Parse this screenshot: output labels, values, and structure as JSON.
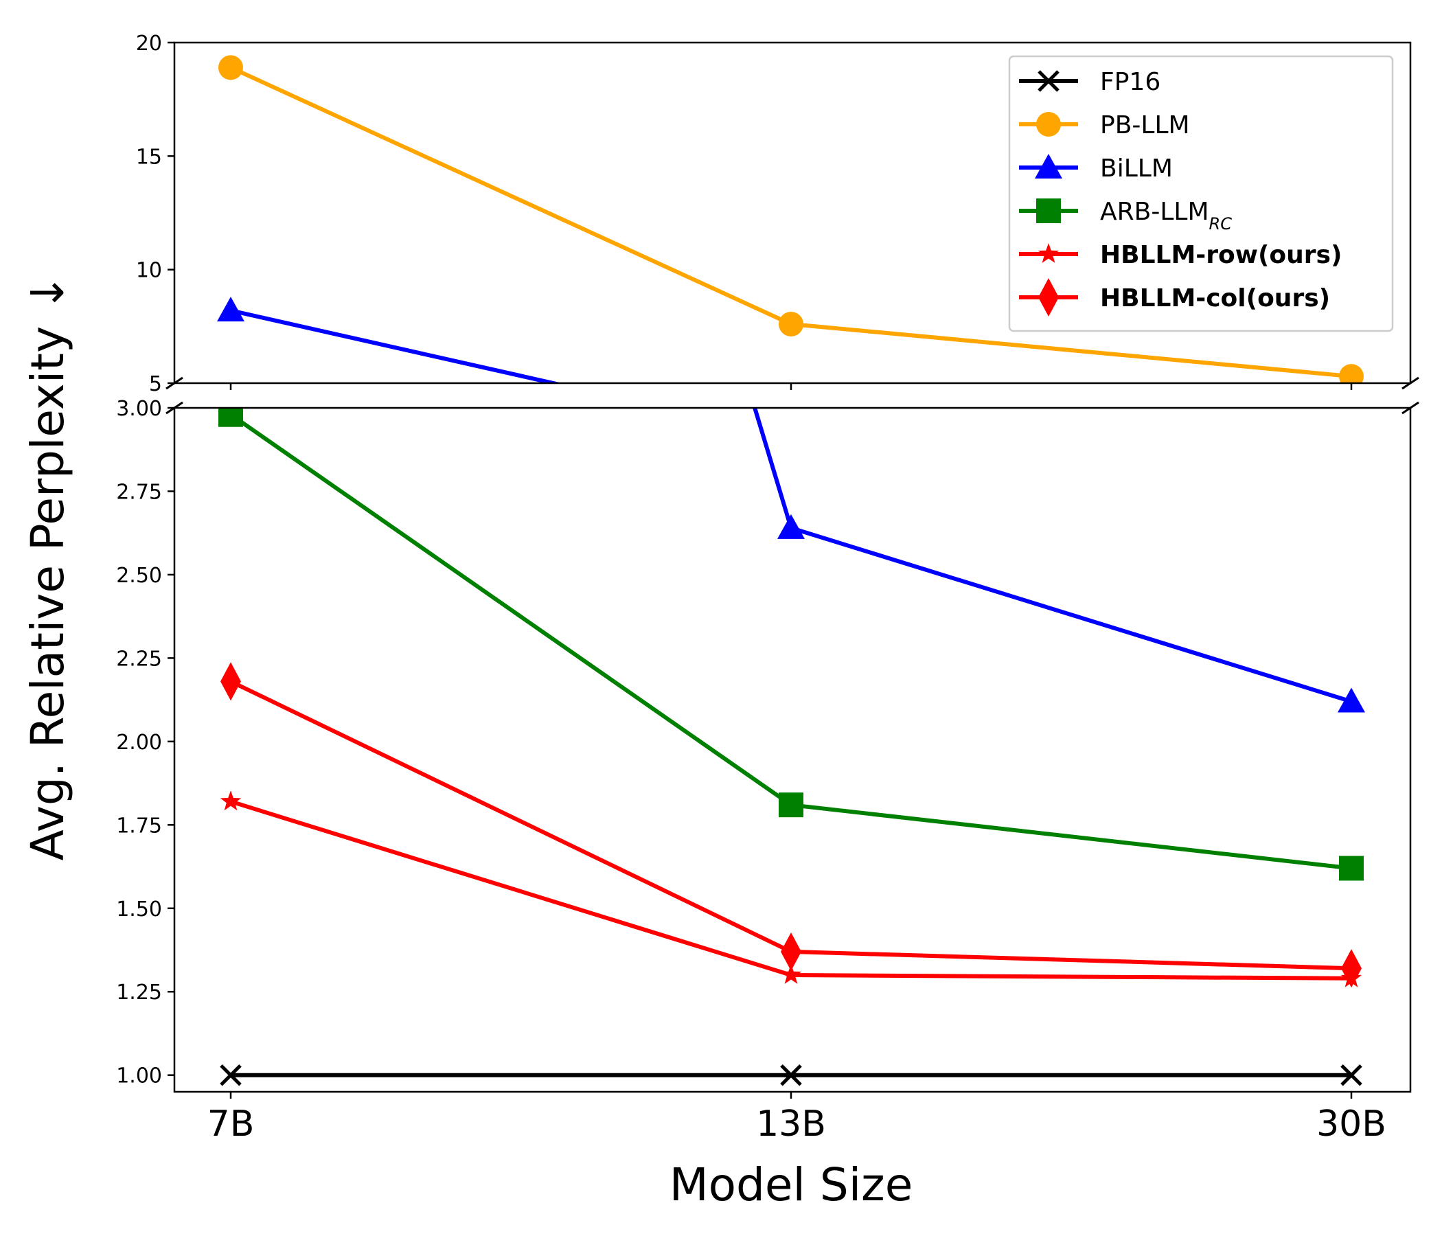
{
  "chart_data": {
    "type": "line",
    "title": "",
    "xlabel": "Model Size",
    "ylabel": "Avg. Relative Perplexity ↓",
    "categories": [
      "7B",
      "13B",
      "30B"
    ],
    "broken_axis": true,
    "top_panel": {
      "ylim": [
        5,
        20
      ],
      "yticks": [
        "5",
        "10",
        "15",
        "20"
      ]
    },
    "bottom_panel": {
      "ylim": [
        0.95,
        3.0
      ],
      "yticks": [
        "1.00",
        "1.25",
        "1.50",
        "1.75",
        "2.00",
        "2.25",
        "2.50",
        "2.75",
        "3.00"
      ]
    },
    "legend": {
      "position": "top-right"
    },
    "series": [
      {
        "name": "FP16",
        "sub": "",
        "bold": false,
        "color": "#000000",
        "marker": "x",
        "values": [
          1.0,
          1.0,
          1.0
        ]
      },
      {
        "name": "PB-LLM",
        "sub": "",
        "bold": false,
        "color": "#ffa500",
        "marker": "circle",
        "values": [
          18.9,
          7.6,
          5.3
        ]
      },
      {
        "name": "BiLLM",
        "sub": "",
        "bold": false,
        "color": "#0000ff",
        "marker": "triangle",
        "values": [
          8.2,
          2.64,
          2.12
        ]
      },
      {
        "name": "ARB-LLM",
        "sub": "RC",
        "bold": false,
        "color": "#008000",
        "marker": "square",
        "values": [
          2.98,
          1.81,
          1.62
        ]
      },
      {
        "name": "HBLLM-row(ours)",
        "sub": "",
        "bold": true,
        "color": "#ff0000",
        "marker": "star",
        "values": [
          1.82,
          1.3,
          1.29
        ]
      },
      {
        "name": "HBLLM-col(ours)",
        "sub": "",
        "bold": true,
        "color": "#ff0000",
        "marker": "diamond",
        "values": [
          2.18,
          1.37,
          1.32
        ]
      }
    ]
  }
}
